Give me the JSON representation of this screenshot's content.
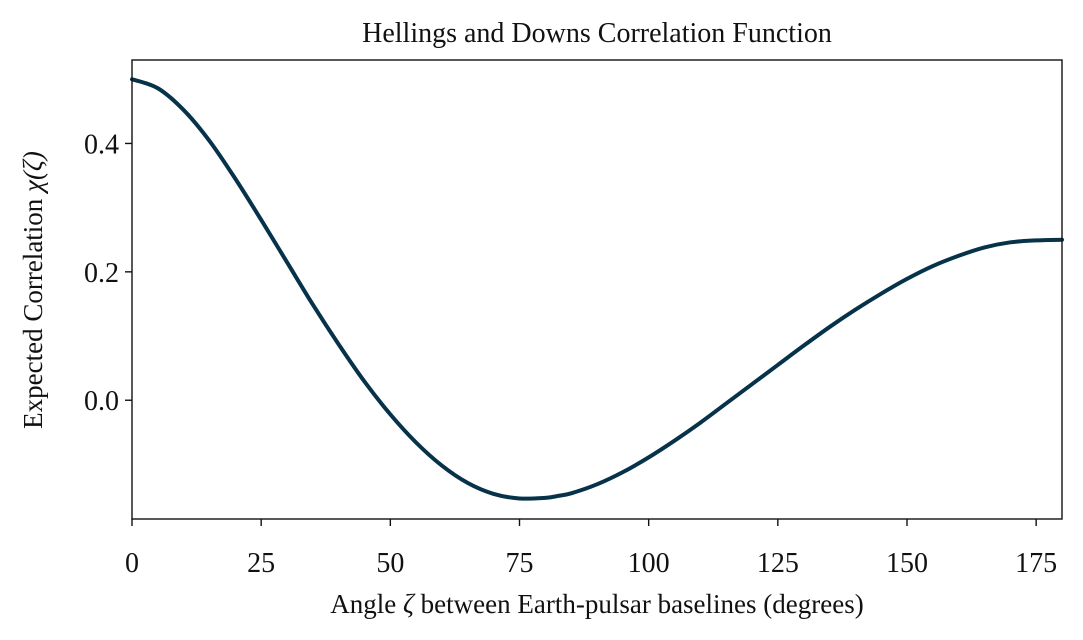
{
  "chart_data": {
    "type": "line",
    "title": "Hellings and Downs Correlation Function",
    "xlabel": "Angle ζ between Earth-pulsar baselines (degrees)",
    "xlabel_parts": {
      "prefix": "Angle ",
      "symbol": "ζ",
      "suffix": " between Earth-pulsar baselines (degrees)"
    },
    "ylabel": "Expected Correlation χ(ζ)",
    "ylabel_parts": {
      "prefix": "Expected Correlation ",
      "symbol": "χ(ζ)"
    },
    "xlim": [
      0,
      180
    ],
    "ylim": [
      -0.185,
      0.53
    ],
    "xticks": [
      0,
      25,
      50,
      75,
      100,
      125,
      150,
      175
    ],
    "xtick_labels": [
      "0",
      "25",
      "50",
      "75",
      "100",
      "125",
      "150",
      "175"
    ],
    "yticks": [
      0.0,
      0.2,
      0.4
    ],
    "ytick_labels": [
      "0.0",
      "0.2",
      "0.4"
    ],
    "grid": false,
    "legend": "none",
    "series": [
      {
        "color": "#06324a",
        "x": [
          0,
          5,
          10,
          15,
          20,
          25,
          30,
          35,
          40,
          45,
          50,
          55,
          60,
          65,
          70,
          75,
          80,
          82.5,
          85,
          90,
          95,
          100,
          105,
          110,
          115,
          120,
          125,
          130,
          135,
          140,
          145,
          150,
          155,
          160,
          165,
          170,
          175,
          180
        ],
        "y": [
          0.5,
          0.486,
          0.452,
          0.404,
          0.345,
          0.281,
          0.215,
          0.149,
          0.087,
          0.029,
          -0.022,
          -0.066,
          -0.102,
          -0.129,
          -0.146,
          -0.153,
          -0.152,
          -0.149,
          -0.145,
          -0.131,
          -0.112,
          -0.089,
          -0.063,
          -0.035,
          -0.005,
          0.025,
          0.055,
          0.085,
          0.114,
          0.141,
          0.166,
          0.189,
          0.209,
          0.225,
          0.238,
          0.246,
          0.249,
          0.25
        ]
      }
    ]
  }
}
